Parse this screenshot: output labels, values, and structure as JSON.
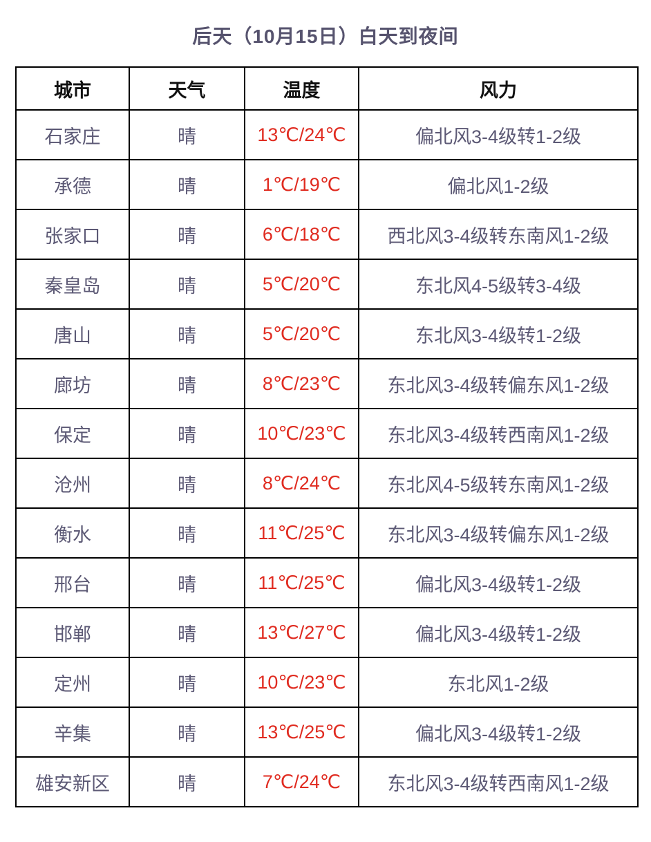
{
  "title": "后天（10月15日）白天到夜间",
  "colors": {
    "title_text": "#56536e",
    "body_text": "#5c5975",
    "temperature_text": "#e02b20",
    "header_text": "#111111",
    "border": "#000000",
    "background": "#ffffff"
  },
  "table": {
    "headers": [
      "城市",
      "天气",
      "温度",
      "风力"
    ],
    "rows": [
      {
        "city": "石家庄",
        "weather": "晴",
        "temp": "13℃/24℃",
        "wind": "偏北风3-4级转1-2级"
      },
      {
        "city": "承德",
        "weather": "晴",
        "temp": "1℃/19℃",
        "wind": "偏北风1-2级"
      },
      {
        "city": "张家口",
        "weather": "晴",
        "temp": "6℃/18℃",
        "wind": "西北风3-4级转东南风1-2级"
      },
      {
        "city": "秦皇岛",
        "weather": "晴",
        "temp": "5℃/20℃",
        "wind": "东北风4-5级转3-4级"
      },
      {
        "city": "唐山",
        "weather": "晴",
        "temp": "5℃/20℃",
        "wind": "东北风3-4级转1-2级"
      },
      {
        "city": "廊坊",
        "weather": "晴",
        "temp": "8℃/23℃",
        "wind": "东北风3-4级转偏东风1-2级"
      },
      {
        "city": "保定",
        "weather": "晴",
        "temp": "10℃/23℃",
        "wind": "东北风3-4级转西南风1-2级"
      },
      {
        "city": "沧州",
        "weather": "晴",
        "temp": "8℃/24℃",
        "wind": "东北风4-5级转东南风1-2级"
      },
      {
        "city": "衡水",
        "weather": "晴",
        "temp": "11℃/25℃",
        "wind": "东北风3-4级转偏东风1-2级"
      },
      {
        "city": "邢台",
        "weather": "晴",
        "temp": "11℃/25℃",
        "wind": "偏北风3-4级转1-2级"
      },
      {
        "city": "邯郸",
        "weather": "晴",
        "temp": "13℃/27℃",
        "wind": "偏北风3-4级转1-2级"
      },
      {
        "city": "定州",
        "weather": "晴",
        "temp": "10℃/23℃",
        "wind": "东北风1-2级"
      },
      {
        "city": "辛集",
        "weather": "晴",
        "temp": "13℃/25℃",
        "wind": "偏北风3-4级转1-2级"
      },
      {
        "city": "雄安新区",
        "weather": "晴",
        "temp": "7℃/24℃",
        "wind": "东北风3-4级转西南风1-2级"
      }
    ]
  }
}
